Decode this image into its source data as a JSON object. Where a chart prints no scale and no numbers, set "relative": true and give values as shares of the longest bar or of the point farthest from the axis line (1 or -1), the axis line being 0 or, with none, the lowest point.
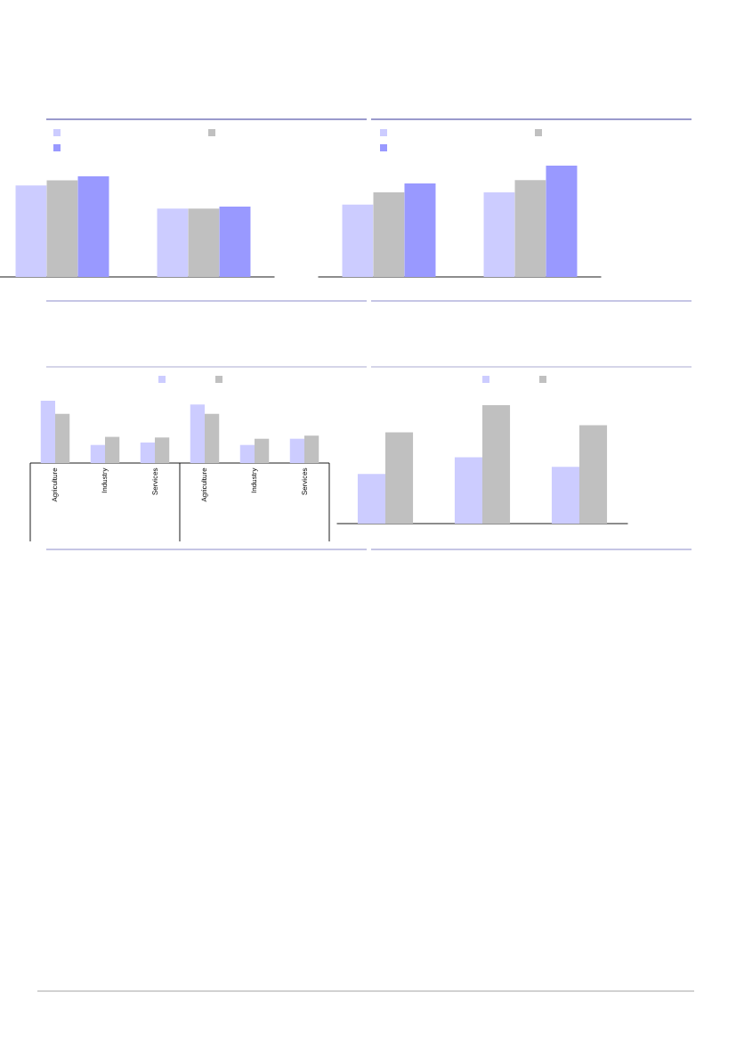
{
  "chart_data": [
    {
      "type": "bar",
      "relative": true,
      "categories": [
        null,
        null
      ],
      "series": [
        {
          "color": "#ccccff",
          "values": [
            0.91,
            0.68
          ]
        },
        {
          "color": "#c0c0c0",
          "values": [
            0.96,
            0.68
          ]
        },
        {
          "color": "#9999ff",
          "values": [
            1,
            0.7
          ]
        }
      ]
    },
    {
      "type": "bar",
      "relative": true,
      "categories": [
        null,
        null
      ],
      "series": [
        {
          "color": "#ccccff",
          "values": [
            0.65,
            0.76
          ]
        },
        {
          "color": "#c0c0c0",
          "values": [
            0.76,
            0.87
          ]
        },
        {
          "color": "#9999ff",
          "values": [
            0.84,
            1
          ]
        }
      ]
    },
    {
      "type": "bar",
      "relative": true,
      "categories": [
        "Agriculture",
        "Industry",
        "Services",
        "Agriculture",
        "Industry",
        "Services"
      ],
      "series": [
        {
          "color": "#ccccff",
          "values": [
            1,
            0.29,
            0.33,
            0.94,
            0.29,
            0.39
          ]
        },
        {
          "color": "#c0c0c0",
          "values": [
            0.79,
            0.42,
            0.41,
            0.79,
            0.39,
            0.44
          ]
        }
      ]
    },
    {
      "type": "bar",
      "relative": true,
      "categories": [
        null,
        null,
        null
      ],
      "series": [
        {
          "color": "#ccccff",
          "values": [
            0.42,
            0.56,
            0.48
          ]
        },
        {
          "color": "#c0c0c0",
          "values": [
            0.77,
            1,
            0.83
          ]
        }
      ]
    }
  ]
}
